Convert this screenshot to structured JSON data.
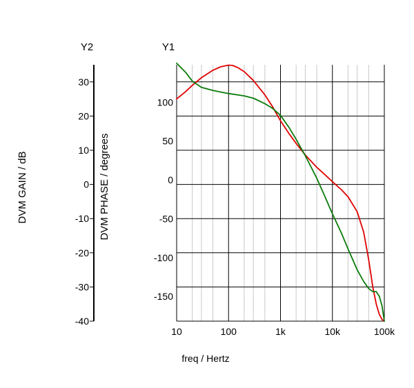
{
  "chart_data": {
    "type": "line",
    "xlabel": "freq / Hertz",
    "xscale": "log",
    "xlim": [
      10,
      100000
    ],
    "x_ticks": [
      {
        "value": 10,
        "label": "10"
      },
      {
        "value": 100,
        "label": "100"
      },
      {
        "value": 1000,
        "label": "1k"
      },
      {
        "value": 10000,
        "label": "10k"
      },
      {
        "value": 100000,
        "label": "100k"
      }
    ],
    "y1": {
      "title": "Y1",
      "label": "DVM PHASE / degrees",
      "ylim": [
        -180,
        150
      ],
      "ticks": [
        {
          "value": 100,
          "label": "100"
        },
        {
          "value": 50,
          "label": "50"
        },
        {
          "value": 0,
          "label": "0"
        },
        {
          "value": -50,
          "label": "-50"
        },
        {
          "value": -100,
          "label": "-100"
        },
        {
          "value": -150,
          "label": "-150"
        }
      ]
    },
    "y2": {
      "title": "Y2",
      "label": "DVM GAIN / dB",
      "ylim": [
        -40,
        35
      ],
      "ticks": [
        {
          "value": 30,
          "label": "30"
        },
        {
          "value": 20,
          "label": "20"
        },
        {
          "value": 10,
          "label": "10"
        },
        {
          "value": 0,
          "label": "0"
        },
        {
          "value": -10,
          "label": "-10"
        },
        {
          "value": -20,
          "label": "-20"
        },
        {
          "value": -30,
          "label": "-30"
        },
        {
          "value": -40,
          "label": "-40"
        }
      ]
    },
    "grid": true,
    "legend": "none",
    "series": [
      {
        "axis": "y2",
        "color": "#e00000",
        "points": [
          [
            10,
            25.0
          ],
          [
            15,
            27.2
          ],
          [
            20,
            29.0
          ],
          [
            30,
            31.2
          ],
          [
            50,
            33.4
          ],
          [
            70,
            34.4
          ],
          [
            100,
            34.9
          ],
          [
            120,
            34.8
          ],
          [
            150,
            34.2
          ],
          [
            200,
            33.0
          ],
          [
            300,
            30.4
          ],
          [
            500,
            26.2
          ],
          [
            700,
            22.8
          ],
          [
            1000,
            18.6
          ],
          [
            1500,
            14.6
          ],
          [
            2000,
            12.0
          ],
          [
            3000,
            8.6
          ],
          [
            5000,
            5.0
          ],
          [
            7000,
            3.0
          ],
          [
            10000,
            0.8
          ],
          [
            15000,
            -1.6
          ],
          [
            20000,
            -3.6
          ],
          [
            30000,
            -8.0
          ],
          [
            40000,
            -14.0
          ],
          [
            50000,
            -22.0
          ],
          [
            60000,
            -30.0
          ],
          [
            70000,
            -35.0
          ],
          [
            80000,
            -38.0
          ],
          [
            90000,
            -39.5
          ],
          [
            100000,
            -40.0
          ]
        ]
      },
      {
        "axis": "y1",
        "color": "#0a7a0a",
        "points": [
          [
            10,
            152
          ],
          [
            15,
            140
          ],
          [
            20,
            129
          ],
          [
            30,
            121
          ],
          [
            50,
            117
          ],
          [
            70,
            115
          ],
          [
            100,
            113
          ],
          [
            200,
            110
          ],
          [
            300,
            107
          ],
          [
            500,
            100
          ],
          [
            700,
            94
          ],
          [
            1000,
            85
          ],
          [
            1500,
            68
          ],
          [
            2000,
            54
          ],
          [
            3000,
            33
          ],
          [
            5000,
            4
          ],
          [
            7000,
            -18
          ],
          [
            10000,
            -42
          ],
          [
            15000,
            -67
          ],
          [
            20000,
            -87
          ],
          [
            30000,
            -114
          ],
          [
            40000,
            -129
          ],
          [
            50000,
            -138
          ],
          [
            60000,
            -142
          ],
          [
            70000,
            -142
          ],
          [
            80000,
            -148
          ],
          [
            90000,
            -160
          ],
          [
            100000,
            -180
          ]
        ]
      }
    ]
  }
}
